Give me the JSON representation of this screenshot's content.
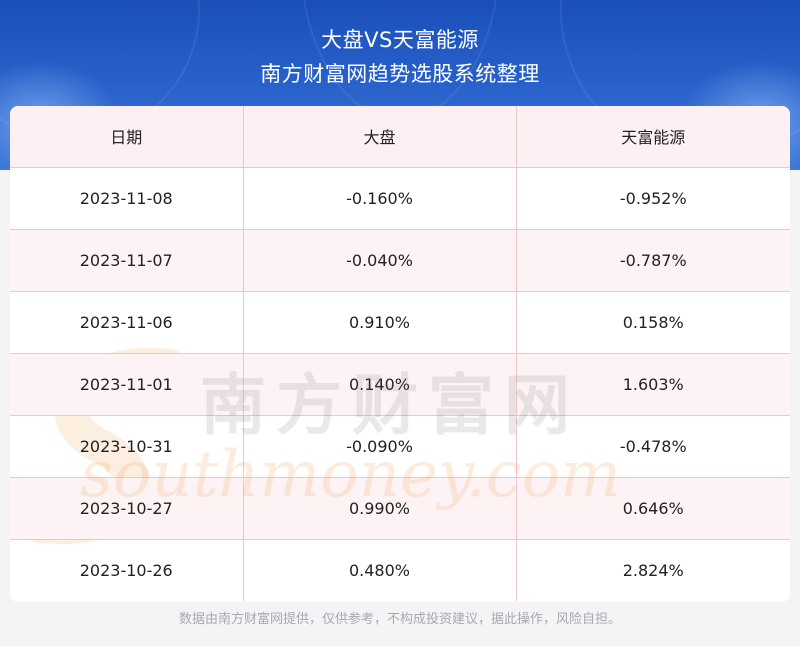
{
  "header": {
    "title": "大盘VS天富能源",
    "subtitle": "南方财富网趋势选股系统整理"
  },
  "table": {
    "columns": [
      "日期",
      "大盘",
      "天富能源"
    ],
    "rows": [
      [
        "2023-11-08",
        "-0.160%",
        "-0.952%"
      ],
      [
        "2023-11-07",
        "-0.040%",
        "-0.787%"
      ],
      [
        "2023-11-06",
        "0.910%",
        "0.158%"
      ],
      [
        "2023-11-01",
        "0.140%",
        "1.603%"
      ],
      [
        "2023-10-31",
        "-0.090%",
        "-0.478%"
      ],
      [
        "2023-10-27",
        "0.990%",
        "0.646%"
      ],
      [
        "2023-10-26",
        "0.480%",
        "2.824%"
      ]
    ]
  },
  "watermark": {
    "text": "南方财富网",
    "url": "southmoney.com"
  },
  "footer": {
    "disclaimer": "数据由南方财富网提供，仅供参考，不构成投资建议，据此操作，风险自担。"
  },
  "colors": {
    "banner": "#2a63cc",
    "grid": "#ecc6cc",
    "row_alt": "#fdf3f5"
  }
}
